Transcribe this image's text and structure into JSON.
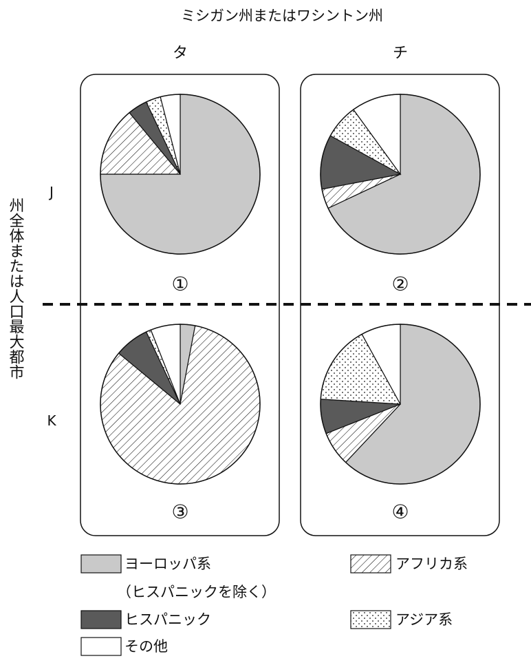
{
  "chart_data": {
    "type": "pie",
    "title": "ミシガン州またはワシントン州",
    "column_headers": [
      "タ",
      "チ"
    ],
    "row_headers": [
      "J",
      "K"
    ],
    "row_axis_label": "州全体または人口最大都市",
    "legend": [
      {
        "key": "euro",
        "label": "ヨーロッパ系",
        "sublabel": "（ヒスパニックを除く）",
        "color": "#c9c9c9",
        "pattern": "solid"
      },
      {
        "key": "afr",
        "label": "アフリカ系",
        "color": "#ffffff",
        "pattern": "diagonal-hatch"
      },
      {
        "key": "hisp",
        "label": "ヒスパニック",
        "color": "#5a5a5a",
        "pattern": "solid"
      },
      {
        "key": "asia",
        "label": "アジア系",
        "color": "#ffffff",
        "pattern": "dots"
      },
      {
        "key": "other",
        "label": "その他",
        "color": "#ffffff",
        "pattern": "solid"
      }
    ],
    "charts": [
      {
        "label": "①",
        "row": "J",
        "col": "タ",
        "slices": {
          "euro": 75,
          "afr": 14,
          "hisp": 4,
          "asia": 3,
          "other": 4
        }
      },
      {
        "label": "②",
        "row": "J",
        "col": "チ",
        "slices": {
          "euro": 68,
          "afr": 4,
          "hisp": 11,
          "asia": 7,
          "other": 10
        }
      },
      {
        "label": "③",
        "row": "K",
        "col": "タ",
        "slices": {
          "euro": 3,
          "afr": 83,
          "hisp": 7,
          "asia": 1,
          "other": 6
        }
      },
      {
        "label": "④",
        "row": "K",
        "col": "チ",
        "slices": {
          "euro": 62,
          "afr": 7,
          "hisp": 7,
          "asia": 16,
          "other": 8
        }
      }
    ]
  }
}
